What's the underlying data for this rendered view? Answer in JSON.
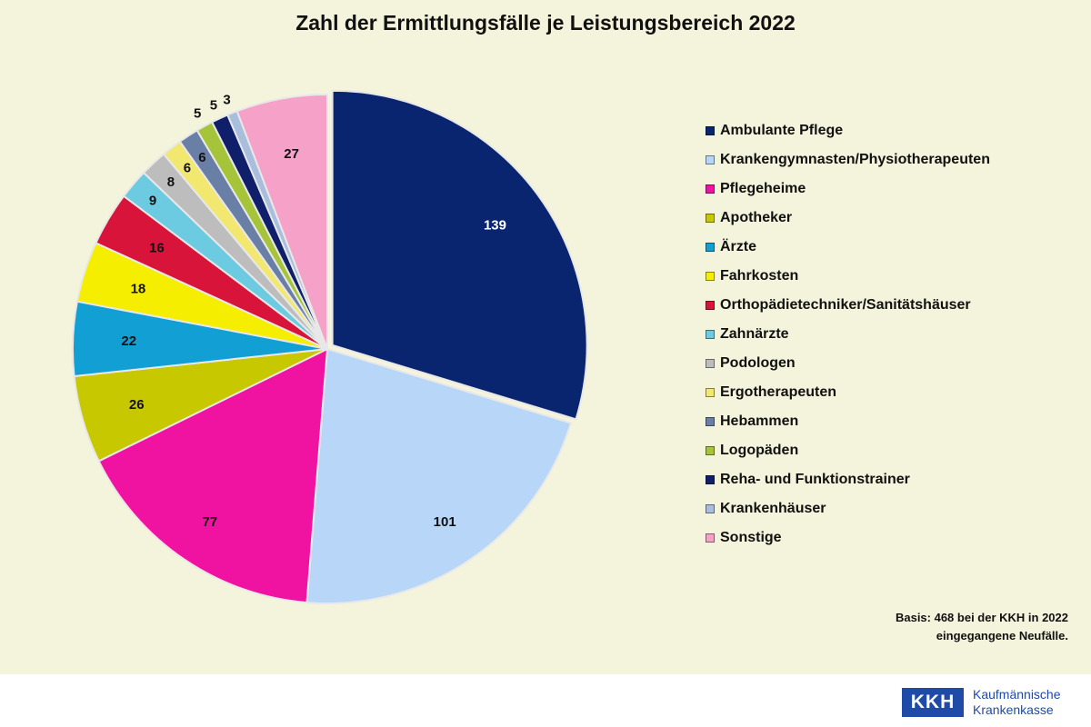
{
  "footer": {
    "logo_text": "KKH",
    "company_line1": "Kaufmännische",
    "company_line2": "Krankenkasse"
  },
  "chart_data": {
    "type": "pie",
    "title": "Zahl der Ermittlungsfälle je Leistungsbereich 2022",
    "note_line1": "Basis: 468 bei der KKH in 2022",
    "note_line2": "eingegangene Neufälle.",
    "legend_position": "right",
    "start": "12 o'clock, clockwise",
    "categories": [
      "Ambulante Pflege",
      "Krankengymnasten/Physiotherapeuten",
      "Pflegeheime",
      "Apotheker",
      "Ärzte",
      "Fahrkosten",
      "Orthopädietechniker/Sanitätshäuser",
      "Zahnärzte",
      "Podologen",
      "Ergotherapeuten",
      "Hebammen",
      "Logopäden",
      "Reha- und Funktionstrainer",
      "Krankenhäuser",
      "Sonstige"
    ],
    "values": [
      139,
      101,
      77,
      26,
      22,
      18,
      16,
      9,
      8,
      6,
      6,
      5,
      5,
      3,
      27
    ],
    "colors": [
      "#0a2570",
      "#b8d6f8",
      "#f012a0",
      "#c8c800",
      "#119fd4",
      "#f6ee00",
      "#d8143a",
      "#6ccbe0",
      "#bdbdbd",
      "#f2e870",
      "#6a7fa6",
      "#a6c43a",
      "#0f1f6a",
      "#a8bedc",
      "#f6a2c8"
    ],
    "label_colors": [
      "#ffffff",
      "#111111",
      "#111111",
      "#111111",
      "#111111",
      "#111111",
      "#111111",
      "#111111",
      "#111111",
      "#111111",
      "#111111",
      "#111111",
      "#111111",
      "#111111",
      "#111111"
    ],
    "exploded": [
      "Ambulante Pflege"
    ]
  }
}
